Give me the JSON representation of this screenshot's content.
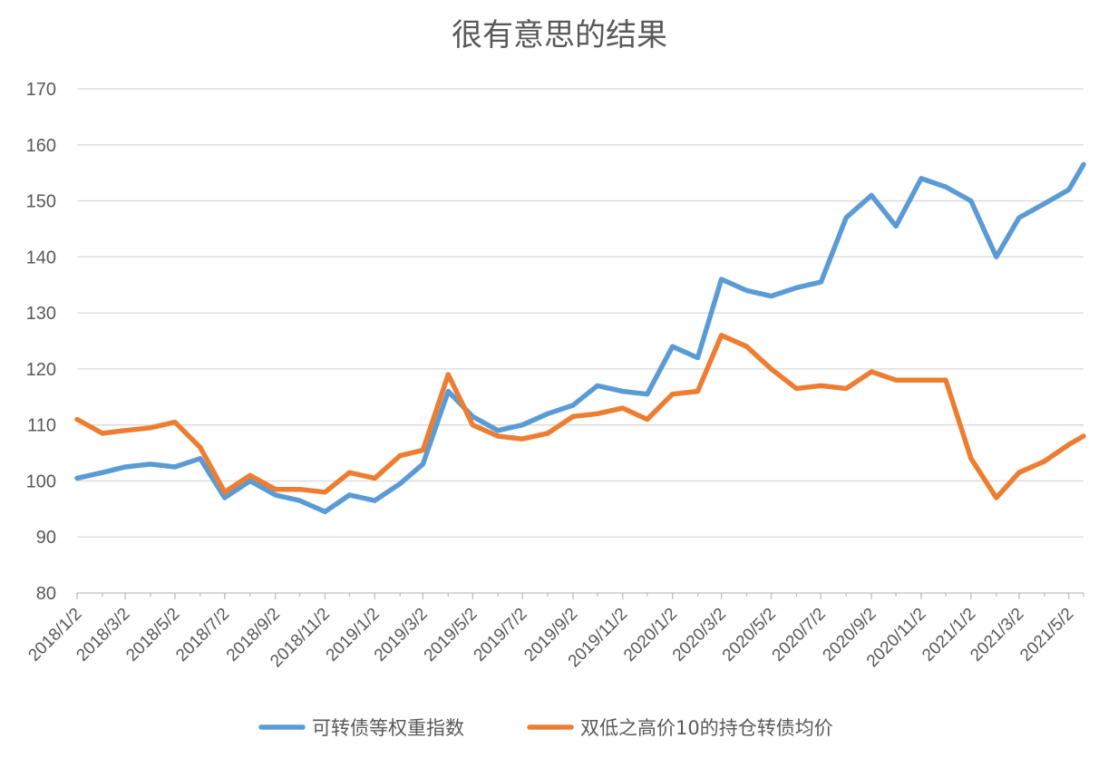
{
  "chart_data": {
    "type": "line",
    "title": "很有意思的结果",
    "xlabel": "",
    "ylabel": "",
    "ylim": [
      80,
      170
    ],
    "yticks": [
      "80",
      "90",
      "100",
      "110",
      "120",
      "130",
      "140",
      "150",
      "160",
      "170"
    ],
    "grid": true,
    "legend_position": "bottom",
    "xtick_labels": [
      "2018/1/2",
      "2018/3/2",
      "2018/5/2",
      "2018/7/2",
      "2018/9/2",
      "2018/11/2",
      "2019/1/2",
      "2019/3/2",
      "2019/5/2",
      "2019/7/2",
      "2019/9/2",
      "2019/11/2",
      "2020/1/2",
      "2020/3/2",
      "2020/5/2",
      "2020/7/2",
      "2020/9/2",
      "2020/11/2",
      "2021/1/2",
      "2021/3/2",
      "2021/5/2"
    ],
    "x": [
      "2018/1/2",
      "2018/2/2",
      "2018/3/2",
      "2018/4/2",
      "2018/5/2",
      "2018/6/2",
      "2018/7/2",
      "2018/8/2",
      "2018/9/2",
      "2018/10/2",
      "2018/11/2",
      "2018/12/2",
      "2019/1/2",
      "2019/2/2",
      "2019/3/2",
      "2019/4/2",
      "2019/5/2",
      "2019/6/2",
      "2019/7/2",
      "2019/8/2",
      "2019/9/2",
      "2019/10/2",
      "2019/11/2",
      "2019/12/2",
      "2020/1/2",
      "2020/2/2",
      "2020/3/2",
      "2020/4/2",
      "2020/5/2",
      "2020/6/2",
      "2020/7/2",
      "2020/8/2",
      "2020/9/2",
      "2020/10/2",
      "2020/11/2",
      "2020/12/2",
      "2021/1/2",
      "2021/2/2",
      "2021/3/2",
      "2021/4/2",
      "2021/5/2",
      "2021/5/20"
    ],
    "series": [
      {
        "name": "可转债等权重指数",
        "color": "#5b9bd5",
        "values": [
          100.5,
          101.5,
          102.5,
          103.0,
          102.5,
          104.0,
          97.0,
          100.0,
          97.5,
          96.5,
          94.5,
          97.5,
          96.5,
          99.5,
          103.0,
          116.0,
          111.5,
          109.0,
          110.0,
          112.0,
          113.5,
          117.0,
          116.0,
          115.5,
          124.0,
          122.0,
          136.0,
          134.0,
          133.0,
          134.5,
          135.5,
          147.0,
          151.0,
          145.5,
          154.0,
          152.5,
          150.0,
          140.0,
          147.0,
          149.5,
          152.0,
          156.5
        ]
      },
      {
        "name": "双低之高价10的持仓转债均价",
        "color": "#ed7d31",
        "values": [
          111.0,
          108.5,
          109.0,
          109.5,
          110.5,
          106.0,
          98.0,
          101.0,
          98.5,
          98.5,
          98.0,
          101.5,
          100.5,
          104.5,
          105.5,
          119.0,
          110.0,
          108.0,
          107.5,
          108.5,
          111.5,
          112.0,
          113.0,
          111.0,
          115.5,
          116.0,
          126.0,
          124.0,
          120.0,
          116.5,
          117.0,
          116.5,
          119.5,
          118.0,
          118.0,
          118.0,
          104.0,
          97.0,
          101.5,
          103.5,
          106.5,
          108.0
        ]
      }
    ]
  }
}
